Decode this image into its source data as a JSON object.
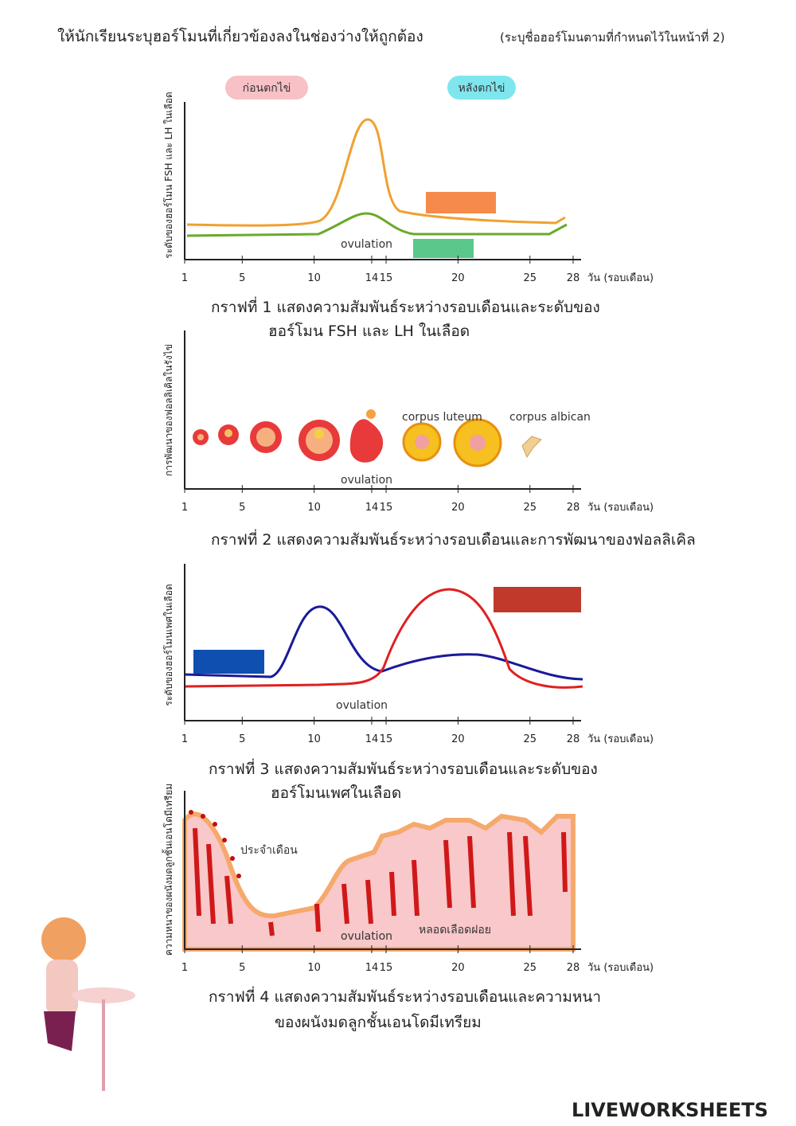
{
  "header": {
    "title": "ให้นักเรียนระบุฮอร์โมนที่เกี่ยวข้องลงในช่องว่างให้ถูกต้อง",
    "note": "(ระบุชื่อฮอร์โมนตามที่กำหนดไว้ในหน้าที่ 2)"
  },
  "x_axis": {
    "ticks": [
      1,
      5,
      10,
      14,
      15,
      20,
      25,
      28
    ],
    "unit": "วัน (รอบเดือน)"
  },
  "graphs": [
    {
      "y_label": "ระดับของฮอร์โมน FSH และ LH ในเลือด",
      "labels": [
        "ก่อนตกไข่",
        "หลังตกไข่",
        "ovulation"
      ],
      "caption": [
        "กราฟที่ 1 แสดงความสัมพันธ์ระหว่างรอบเดือนและระดับของ",
        "ฮอร์โมน FSH และ LH ในเลือด"
      ]
    },
    {
      "y_label": "การพัฒนาของฟอลลิเคิลในรังไข่",
      "labels": [
        "corpus luteum",
        "corpus albican",
        "ovulation"
      ],
      "caption": [
        "กราฟที่ 2 แสดงความสัมพันธ์ระหว่างรอบเดือนและการพัฒนาของฟอลลิเคิล"
      ]
    },
    {
      "y_label": "ระดับของฮอร์โมนเพศในเลือด",
      "labels": [
        "ovulation"
      ],
      "caption": [
        "กราฟที่ 3 แสดงความสัมพันธ์ระหว่างรอบเดือนและระดับของ",
        "ฮอร์โมนเพศในเลือด"
      ]
    },
    {
      "y_label": "ความหนาของผนังมดลูกชั้นเอนโดมีเทรียม",
      "labels": [
        "ประจำเดือน",
        "ovulation",
        "หลอดเลือดฝอย"
      ],
      "caption": [
        "กราฟที่ 4 แสดงความสัมพันธ์ระหว่างรอบเดือนและความหนา",
        "ของผนังมดลูกชั้นเอนโดมีเทรียม"
      ]
    }
  ],
  "footer": {
    "brand": "LIVEWORKSHEETS"
  }
}
